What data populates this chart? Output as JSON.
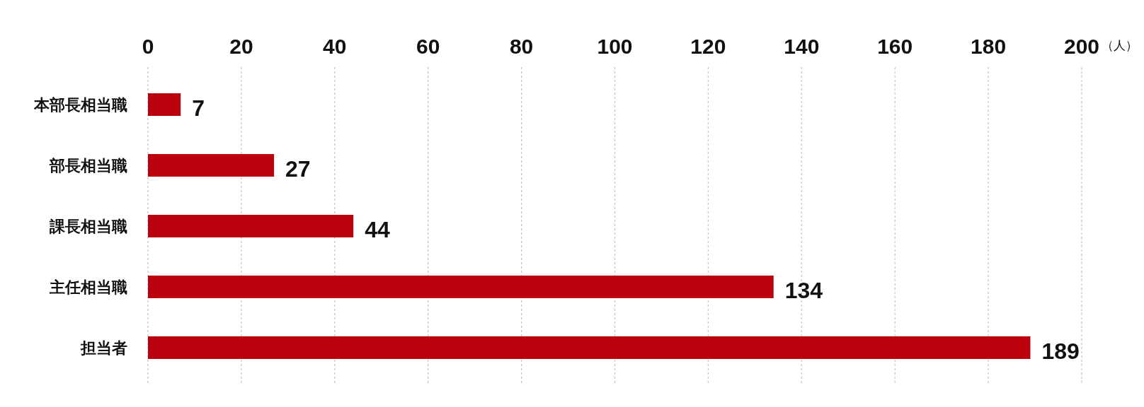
{
  "chart_data": {
    "type": "bar",
    "orientation": "horizontal",
    "xlabel": "（人）",
    "categories": [
      "本部長相当職",
      "部長相当職",
      "課長相当職",
      "主任相当職",
      "担当者"
    ],
    "values": [
      7,
      27,
      44,
      134,
      189
    ],
    "color": "#bb000e",
    "xlim": [
      0,
      200
    ],
    "xticks": [
      0,
      20,
      40,
      60,
      80,
      100,
      120,
      140,
      160,
      180,
      200
    ],
    "grid": "x",
    "data_labels": true
  }
}
